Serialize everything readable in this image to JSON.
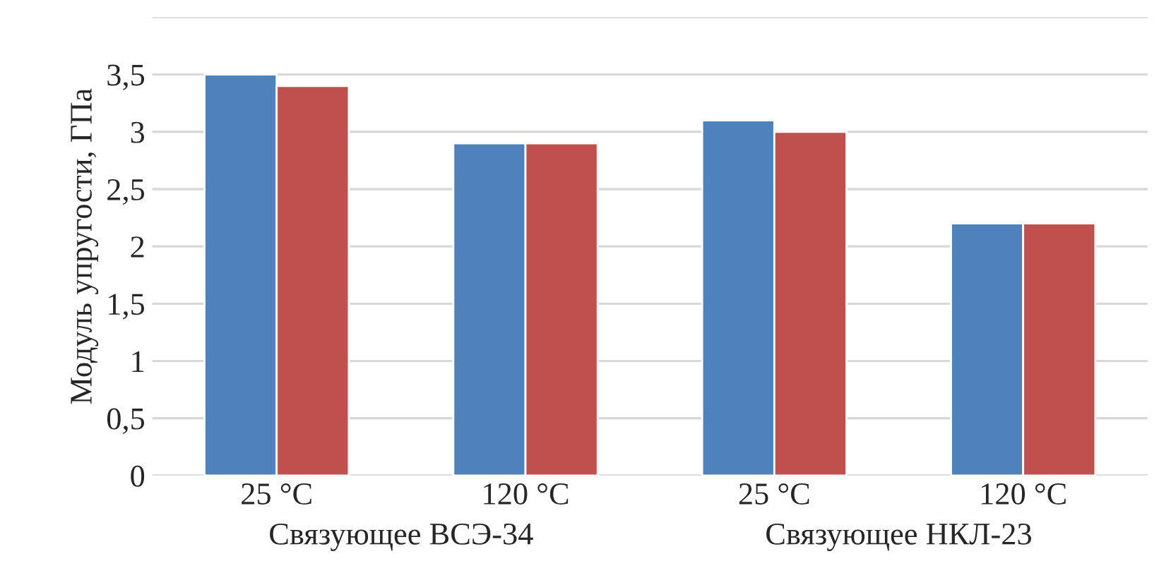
{
  "chart_data": {
    "type": "bar",
    "ylabel": "Модуль упругости, ГПа",
    "categories": [
      "25 °C",
      "120 °C",
      "25 °C",
      "120 °C"
    ],
    "series": [
      {
        "color": "#4f81bd",
        "values": [
          3.5,
          2.9,
          3.1,
          2.2
        ]
      },
      {
        "color": "#c0504d",
        "values": [
          3.4,
          2.9,
          3.0,
          2.2
        ]
      }
    ],
    "ylim": [
      0,
      4
    ],
    "yticks": [
      {
        "value": 0,
        "label": "0"
      },
      {
        "value": 0.5,
        "label": "0,5"
      },
      {
        "value": 1,
        "label": "1"
      },
      {
        "value": 1.5,
        "label": "1,5"
      },
      {
        "value": 2,
        "label": "2"
      },
      {
        "value": 2.5,
        "label": "2,5"
      },
      {
        "value": 3,
        "label": "3"
      },
      {
        "value": 3.5,
        "label": "3,5"
      },
      {
        "value": 4,
        "label": null
      }
    ],
    "grid": "y",
    "annotations": [
      "Связующее ВСЭ-34",
      "Связующее НКЛ-23"
    ]
  }
}
